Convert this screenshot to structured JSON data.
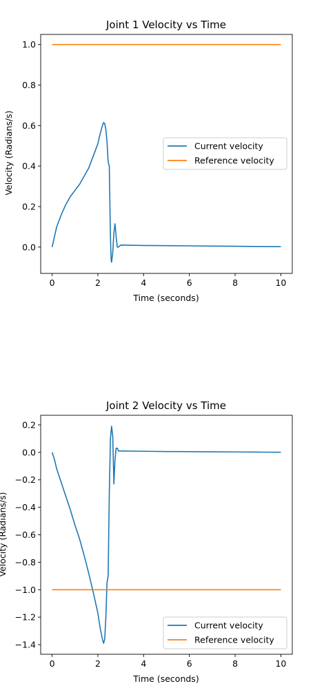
{
  "chart_data": [
    {
      "type": "line",
      "title": "Joint 1 Velocity vs Time",
      "xlabel": "Time (seconds)",
      "ylabel": "Velocity (Radians/s)",
      "xlim": [
        -0.5,
        10.5
      ],
      "ylim": [
        -0.13,
        1.05
      ],
      "xticks": [
        0,
        2,
        4,
        6,
        8,
        10
      ],
      "yticks": [
        0.0,
        0.2,
        0.4,
        0.6,
        0.8,
        1.0
      ],
      "legend_position": "center-right",
      "grid": false,
      "series": [
        {
          "name": "Current velocity",
          "color": "#1f77b4",
          "x": [
            0,
            0.1,
            0.2,
            0.4,
            0.6,
            0.8,
            1.0,
            1.2,
            1.4,
            1.6,
            1.8,
            2.0,
            2.1,
            2.2,
            2.25,
            2.3,
            2.35,
            2.4,
            2.45,
            2.5,
            2.55,
            2.58,
            2.6,
            2.65,
            2.7,
            2.75,
            2.8,
            2.85,
            2.9,
            3.0,
            4,
            5,
            6,
            7,
            8,
            9,
            10
          ],
          "y": [
            0.0,
            0.05,
            0.1,
            0.16,
            0.21,
            0.25,
            0.28,
            0.31,
            0.35,
            0.39,
            0.45,
            0.51,
            0.56,
            0.6,
            0.615,
            0.61,
            0.58,
            0.52,
            0.42,
            0.4,
            0.05,
            -0.06,
            -0.075,
            -0.03,
            0.07,
            0.115,
            0.05,
            0.0,
            0.0,
            0.01,
            0.008,
            0.007,
            0.006,
            0.005,
            0.004,
            0.003,
            0.002
          ]
        },
        {
          "name": "Reference velocity",
          "color": "#ff7f0e",
          "x": [
            0,
            10
          ],
          "y": [
            1.0,
            1.0
          ]
        }
      ]
    },
    {
      "type": "line",
      "title": "Joint 2 Velocity vs Time",
      "xlabel": "Time (seconds)",
      "ylabel": "Velocity (Radians/s)",
      "xlim": [
        -0.5,
        10.5
      ],
      "ylim": [
        -1.47,
        0.27
      ],
      "xticks": [
        0,
        2,
        4,
        6,
        8,
        10
      ],
      "yticks": [
        -1.4,
        -1.2,
        -1.0,
        -0.8,
        -0.6,
        -0.4,
        -0.2,
        0.0,
        0.2
      ],
      "legend_position": "lower-right",
      "grid": false,
      "series": [
        {
          "name": "Current velocity",
          "color": "#1f77b4",
          "x": [
            0,
            0.1,
            0.2,
            0.4,
            0.6,
            0.8,
            1.0,
            1.2,
            1.4,
            1.6,
            1.8,
            2.0,
            2.1,
            2.2,
            2.25,
            2.3,
            2.35,
            2.4,
            2.45,
            2.5,
            2.55,
            2.6,
            2.65,
            2.7,
            2.75,
            2.8,
            2.85,
            2.9,
            3.0,
            4,
            5,
            6,
            7,
            8,
            9,
            10
          ],
          "y": [
            0.0,
            -0.05,
            -0.12,
            -0.22,
            -0.32,
            -0.42,
            -0.53,
            -0.63,
            -0.75,
            -0.88,
            -1.02,
            -1.17,
            -1.28,
            -1.36,
            -1.39,
            -1.36,
            -1.2,
            -0.95,
            -0.9,
            -0.3,
            0.1,
            0.19,
            0.12,
            -0.23,
            -0.05,
            0.03,
            0.03,
            0.01,
            0.01,
            0.008,
            0.006,
            0.005,
            0.004,
            0.003,
            0.002,
            0.001
          ]
        },
        {
          "name": "Reference velocity",
          "color": "#ff7f0e",
          "x": [
            0,
            10
          ],
          "y": [
            -1.0,
            -1.0
          ]
        }
      ]
    }
  ]
}
